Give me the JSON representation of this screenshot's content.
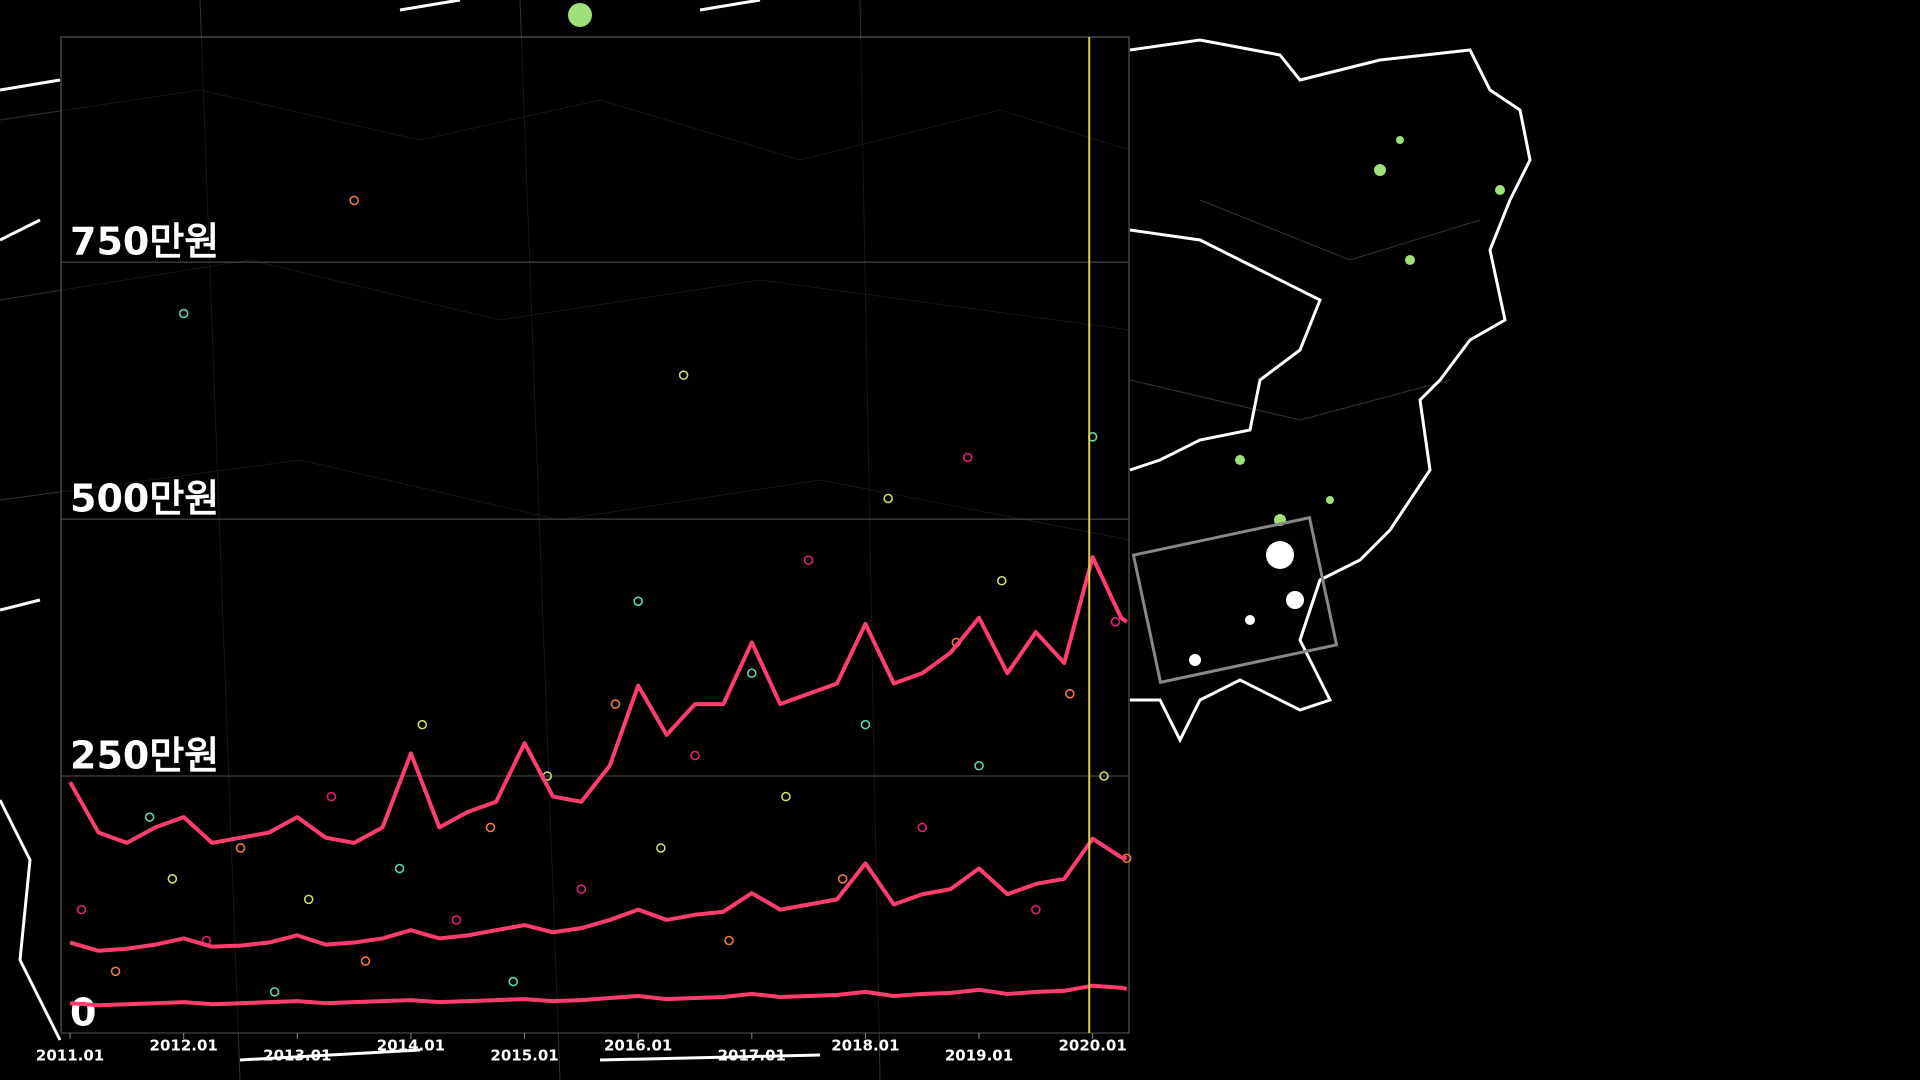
{
  "chart_data": {
    "type": "scatter",
    "xlim": [
      2010.92,
      2020.32
    ],
    "ylim": [
      0,
      969
    ],
    "xticks": [
      {
        "value": 2011,
        "label": "2011.01"
      },
      {
        "value": 2012,
        "label": "2012.01"
      },
      {
        "value": 2013,
        "label": "2013.01"
      },
      {
        "value": 2014,
        "label": "2014.01"
      },
      {
        "value": 2015,
        "label": "2015.01"
      },
      {
        "value": 2016,
        "label": "2016.01"
      },
      {
        "value": 2017,
        "label": "2017.01"
      },
      {
        "value": 2018,
        "label": "2018.01"
      },
      {
        "value": 2019,
        "label": "2019.01"
      },
      {
        "value": 2020,
        "label": "2020.01"
      }
    ],
    "yticks": [
      0,
      {
        "value": 250,
        "label": "250만원"
      },
      {
        "value": 500,
        "label": "500만원"
      },
      {
        "value": 750,
        "label": "750만원"
      }
    ],
    "grid": true,
    "cursor_x": 2019.97,
    "points": {
      "colors": [
        "#e0207a",
        "#f07a3a",
        "#5ed8b0",
        "#c8e060"
      ],
      "x": [
        2011.1,
        2011.4,
        2011.7,
        2011.9,
        2012.2,
        2012.5,
        2012.8,
        2013.1,
        2013.3,
        2013.6,
        2013.9,
        2014.1,
        2014.4,
        2014.7,
        2014.9,
        2015.2,
        2015.5,
        2015.8,
        2016.0,
        2016.2,
        2016.5,
        2016.8,
        2017.0,
        2017.3,
        2017.5,
        2017.8,
        2018.0,
        2018.2,
        2018.5,
        2018.8,
        2019.0,
        2019.2,
        2019.5,
        2019.8,
        2020.0,
        2020.1,
        2020.2,
        2020.3,
        2012.0,
        2016.4,
        2018.9,
        2013.5
      ],
      "y": [
        120,
        60,
        210,
        150,
        90,
        180,
        40,
        130,
        230,
        70,
        160,
        300,
        110,
        200,
        50,
        250,
        140,
        320,
        420,
        180,
        270,
        90,
        350,
        230,
        460,
        150,
        300,
        520,
        200,
        380,
        260,
        440,
        120,
        330,
        580,
        250,
        400,
        170,
        700,
        640,
        560,
        810
      ]
    },
    "lines": {
      "color": "#ff3d6e",
      "x": [
        2011.0,
        2011.25,
        2011.5,
        2011.75,
        2012.0,
        2012.25,
        2012.5,
        2012.75,
        2013.0,
        2013.25,
        2013.5,
        2013.75,
        2014.0,
        2014.25,
        2014.5,
        2014.75,
        2015.0,
        2015.25,
        2015.5,
        2015.75,
        2016.0,
        2016.25,
        2016.5,
        2016.75,
        2017.0,
        2017.25,
        2017.5,
        2017.75,
        2018.0,
        2018.25,
        2018.5,
        2018.75,
        2019.0,
        2019.25,
        2019.5,
        2019.75,
        2020.0,
        2020.25,
        2020.3
      ],
      "series": [
        {
          "values": [
            244,
            195,
            185,
            200,
            210,
            185,
            190,
            195,
            210,
            190,
            185,
            200,
            272,
            200,
            215,
            225,
            282,
            230,
            225,
            260,
            338,
            290,
            320,
            320,
            380,
            320,
            330,
            340,
            398,
            340,
            350,
            370,
            404,
            350,
            390,
            360,
            463,
            404,
            400
          ]
        },
        {
          "values": [
            88,
            80,
            82,
            86,
            92,
            84,
            85,
            88,
            95,
            86,
            88,
            92,
            100,
            92,
            95,
            100,
            105,
            98,
            102,
            110,
            120,
            110,
            115,
            118,
            136,
            120,
            125,
            130,
            165,
            125,
            135,
            140,
            160,
            135,
            145,
            150,
            189,
            171,
            170
          ]
        },
        {
          "values": [
            29,
            27,
            28,
            29,
            30,
            28,
            29,
            30,
            31,
            29,
            30,
            31,
            32,
            30,
            31,
            32,
            33,
            31,
            32,
            34,
            36,
            33,
            34,
            35,
            38,
            35,
            36,
            37,
            40,
            36,
            38,
            39,
            42,
            38,
            40,
            41,
            46,
            44,
            43
          ]
        }
      ]
    }
  }
}
